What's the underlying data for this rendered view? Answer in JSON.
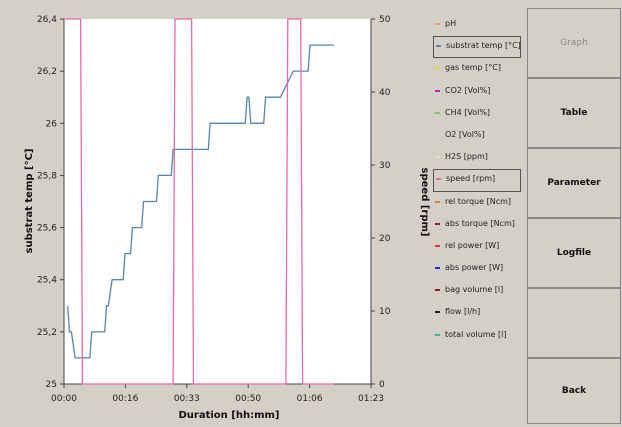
{
  "chart_data": {
    "type": "line",
    "xlabel": "Duration [hh:mm]",
    "ylabel_left": "substrat temp [°C]",
    "ylabel_right": "speed [rpm]",
    "xticks": [
      "00:00",
      "00:16",
      "00:33",
      "00:50",
      "01:06",
      "01:23"
    ],
    "xlim_min": [
      0,
      83
    ],
    "yticks_left": [
      "25",
      "25,2",
      "25,4",
      "25,6",
      "25,8",
      "26",
      "26,2",
      "26,4"
    ],
    "yticks_right": [
      "0",
      "10",
      "20",
      "30",
      "40",
      "50"
    ],
    "ylim_left": [
      25,
      26.4
    ],
    "ylim_right": [
      0,
      50
    ],
    "grid": false,
    "series": [
      {
        "name": "substrat temp [°C]",
        "axis": "left",
        "color": "#5a84a8",
        "x": [
          1,
          1.5,
          2,
          3,
          3.5,
          7,
          7.5,
          11,
          11.5,
          12,
          13,
          13.5,
          16,
          16.5,
          18,
          18.5,
          21,
          21.5,
          25,
          25.5,
          27,
          27.5,
          29,
          29.5,
          34,
          34.5,
          39,
          39.5,
          49,
          49.5,
          50,
          50.5,
          54,
          54.5,
          58,
          58.5,
          62,
          62.5,
          66,
          66.5,
          73
        ],
        "y": [
          25.3,
          25.2,
          25.2,
          25.1,
          25.1,
          25.1,
          25.2,
          25.2,
          25.3,
          25.3,
          25.4,
          25.4,
          25.4,
          25.5,
          25.5,
          25.6,
          25.6,
          25.7,
          25.7,
          25.8,
          25.8,
          25.8,
          25.8,
          25.9,
          25.9,
          25.9,
          25.9,
          26.0,
          26.0,
          26.1,
          26.1,
          26.0,
          26.0,
          26.1,
          26.1,
          26.1,
          26.2,
          26.2,
          26.2,
          26.3,
          26.3
        ]
      },
      {
        "name": "speed [rpm]",
        "axis": "right",
        "color": "#e86aa8",
        "x": [
          0,
          4.5,
          5,
          29.5,
          30,
          34.5,
          35,
          60,
          60.5,
          64,
          64.5,
          73
        ],
        "y": [
          50,
          50,
          0,
          0,
          50,
          50,
          0,
          0,
          50,
          50,
          0,
          0
        ]
      }
    ]
  },
  "legend": [
    {
      "label": "pH",
      "color": "#e8a070",
      "boxed": false
    },
    {
      "label": "substrat temp [°C]",
      "color": "#5a84a8",
      "boxed": true
    },
    {
      "label": "gas temp [°C]",
      "color": "#e6d838",
      "boxed": false
    },
    {
      "label": "CO2 [Vol%]",
      "color": "#c020c0",
      "boxed": false
    },
    {
      "label": "CH4 [Vol%]",
      "color": "#80c870",
      "boxed": false
    },
    {
      "label": "O2 [Vol%]",
      "color": "#d8d0c0",
      "boxed": false
    },
    {
      "label": "H2S [ppm]",
      "color": "#e8e0b0",
      "boxed": false
    },
    {
      "label": "speed [rpm]",
      "color": "#e86aa8",
      "boxed": true
    },
    {
      "label": "rel torque [Ncm]",
      "color": "#e08040",
      "boxed": false
    },
    {
      "label": "abs torque [Ncm]",
      "color": "#902020",
      "boxed": false
    },
    {
      "label": "rel power [W]",
      "color": "#e03030",
      "boxed": false
    },
    {
      "label": "abs power [W]",
      "color": "#2030d0",
      "boxed": false
    },
    {
      "label": "bag volume [l]",
      "color": "#902020",
      "boxed": false
    },
    {
      "label": "flow [l/h]",
      "color": "#202020",
      "boxed": false
    },
    {
      "label": "total volume [l]",
      "color": "#40b898",
      "boxed": false
    }
  ],
  "sidebar": {
    "graph": "Graph",
    "table": "Table",
    "parameter": "Parameter",
    "logfile": "Logfile",
    "blank": "",
    "back": "Back"
  }
}
